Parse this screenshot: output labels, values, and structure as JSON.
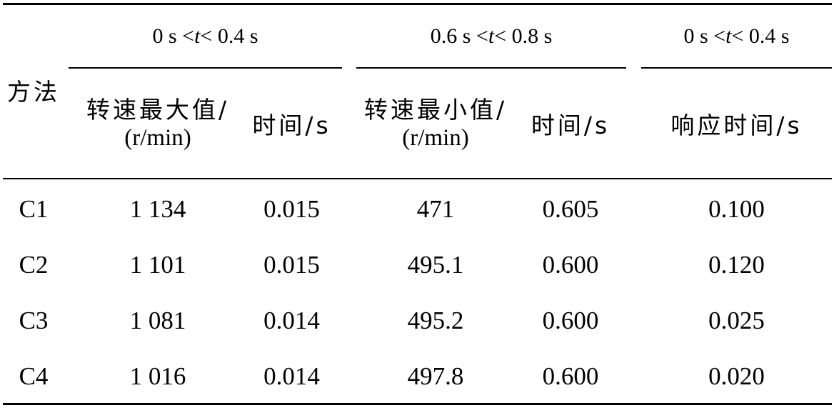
{
  "table": {
    "row_header": "方法",
    "groups": [
      {
        "pre": "0 s < ",
        "var": "t",
        "post": " < 0.4 s"
      },
      {
        "pre": "0.6 s < ",
        "var": "t",
        "post": " < 0.8 s"
      },
      {
        "pre": "0 s < ",
        "var": "t",
        "post": " < 0.4 s"
      }
    ],
    "columns": [
      {
        "line1": "转速最大值/",
        "line2": "(r/min)"
      },
      {
        "line1": "时间/s"
      },
      {
        "line1": "转速最小值/",
        "line2": "(r/min)"
      },
      {
        "line1": "时间/s"
      },
      {
        "line1": "响应时间/s"
      }
    ],
    "rows": [
      [
        "C1",
        "1 134",
        "0.015",
        "471",
        "0.605",
        "0.100"
      ],
      [
        "C2",
        "1 101",
        "0.015",
        "495.1",
        "0.600",
        "0.120"
      ],
      [
        "C3",
        "1 081",
        "0.014",
        "495.2",
        "0.600",
        "0.025"
      ],
      [
        "C4",
        "1 016",
        "0.014",
        "497.8",
        "0.600",
        "0.020"
      ]
    ]
  }
}
